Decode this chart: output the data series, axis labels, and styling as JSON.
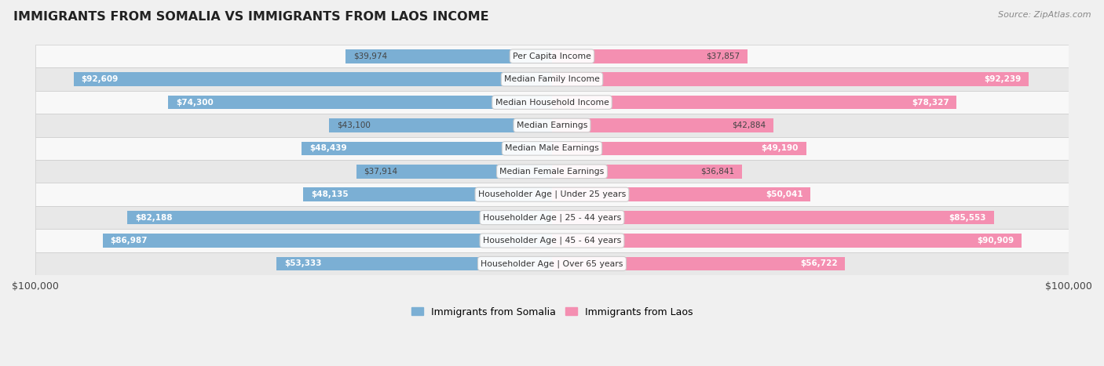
{
  "title": "IMMIGRANTS FROM SOMALIA VS IMMIGRANTS FROM LAOS INCOME",
  "source": "Source: ZipAtlas.com",
  "categories": [
    "Per Capita Income",
    "Median Family Income",
    "Median Household Income",
    "Median Earnings",
    "Median Male Earnings",
    "Median Female Earnings",
    "Householder Age | Under 25 years",
    "Householder Age | 25 - 44 years",
    "Householder Age | 45 - 64 years",
    "Householder Age | Over 65 years"
  ],
  "somalia_values": [
    39974,
    92609,
    74300,
    43100,
    48439,
    37914,
    48135,
    82188,
    86987,
    53333
  ],
  "laos_values": [
    37857,
    92239,
    78327,
    42884,
    49190,
    36841,
    50041,
    85553,
    90909,
    56722
  ],
  "somalia_labels": [
    "$39,974",
    "$92,609",
    "$74,300",
    "$43,100",
    "$48,439",
    "$37,914",
    "$48,135",
    "$82,188",
    "$86,987",
    "$53,333"
  ],
  "laos_labels": [
    "$37,857",
    "$92,239",
    "$78,327",
    "$42,884",
    "$49,190",
    "$36,841",
    "$50,041",
    "$85,553",
    "$90,909",
    "$56,722"
  ],
  "max_value": 100000,
  "somalia_color": "#7bafd4",
  "laos_color": "#f48fb1",
  "label_somalia": "Immigrants from Somalia",
  "label_laos": "Immigrants from Laos",
  "bg_color": "#f0f0f0",
  "row_bg_light": "#f8f8f8",
  "row_bg_dark": "#e8e8e8",
  "bar_height": 0.6,
  "figsize": [
    14.06,
    4.67
  ],
  "dpi": 100,
  "inside_threshold": 0.45
}
